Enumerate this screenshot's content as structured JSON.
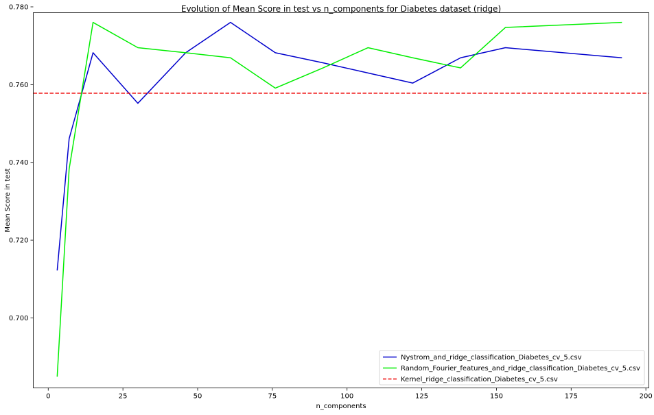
{
  "chart_data": {
    "type": "line",
    "title": "Evolution of Mean Score in test vs n_components for Diabetes dataset (ridge)",
    "xlabel": "n_components",
    "ylabel": "Mean Score in test",
    "xlim": [
      -5,
      201
    ],
    "ylim": [
      0.682,
      0.7785
    ],
    "xticks": [
      0,
      25,
      50,
      75,
      100,
      125,
      150,
      175,
      200
    ],
    "yticks": [
      0.7,
      0.72,
      0.74,
      0.76,
      0.78
    ],
    "ytick_labels": [
      "0.700",
      "0.720",
      "0.740",
      "0.760",
      "0.780"
    ],
    "grid": false,
    "legend_position": "lower-right",
    "series": [
      {
        "name": "Nystrom_and_ridge_classification_Diabetes_cv_5.csv",
        "color": "#0000cc",
        "style": "solid",
        "x": [
          3,
          7,
          15,
          30,
          46,
          61,
          76,
          92,
          107,
          122,
          138,
          153,
          192
        ],
        "y": [
          0.7122,
          0.7461,
          0.7682,
          0.7552,
          0.7682,
          0.776,
          0.7682,
          0.7656,
          0.763,
          0.7604,
          0.7669,
          0.7695,
          0.7669
        ]
      },
      {
        "name": "Random_Fourier_features_and_ridge_classification_Diabetes_cv_5.csv",
        "color": "#00ee00",
        "style": "solid",
        "x": [
          3,
          7,
          15,
          30,
          46,
          61,
          76,
          92,
          107,
          122,
          138,
          153,
          192
        ],
        "y": [
          0.6849,
          0.7383,
          0.776,
          0.7695,
          0.7682,
          0.7669,
          0.7591,
          0.7643,
          0.7695,
          0.7669,
          0.7643,
          0.7747,
          0.776
        ]
      },
      {
        "name": "Kernel_ridge_classification_Diabetes_cv_5.csv",
        "color": "#ee0000",
        "style": "dashed",
        "type": "hline",
        "y": 0.7578
      }
    ]
  }
}
